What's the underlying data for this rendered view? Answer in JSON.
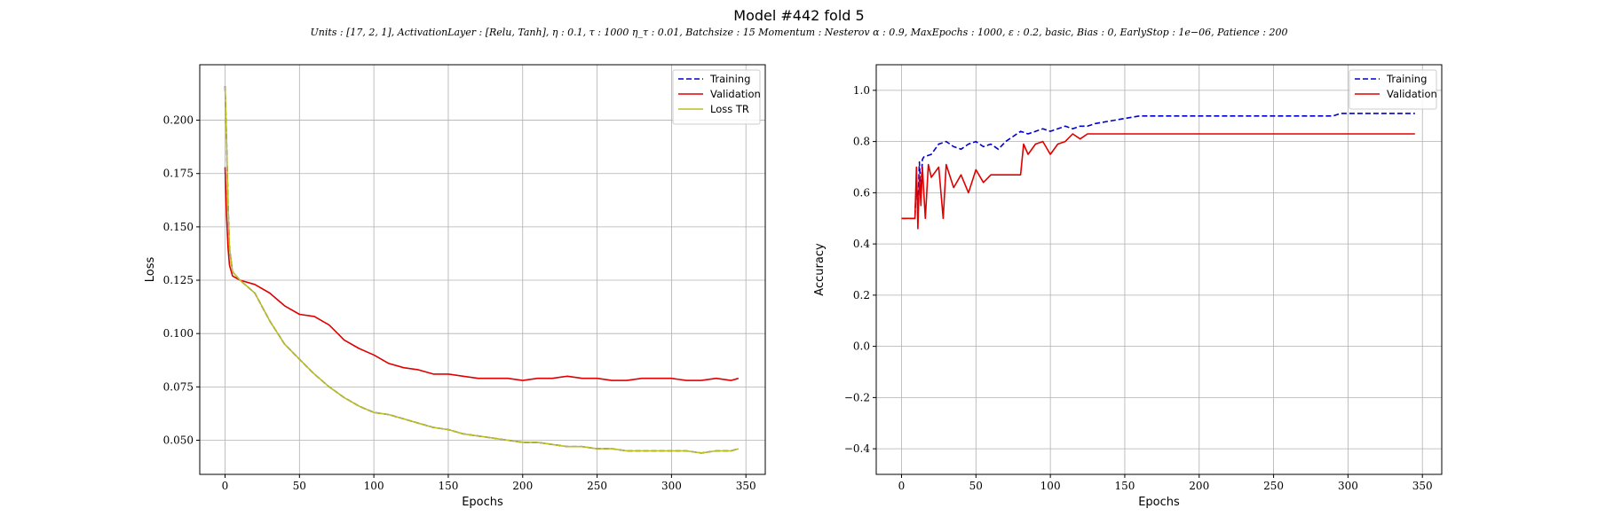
{
  "figure": {
    "title": "Model #442 fold 5",
    "subtitle": "Units : [17, 2, 1], ActivationLayer : [Relu, Tanh], η : 0.1, τ : 1000 η_τ : 0.01, Batchsize : 15 Momentum : Nesterov α : 0.9, MaxEpochs : 1000, ε : 0.2, basic, Bias : 0, EarlyStop : 1e−06, Patience : 200"
  },
  "chart_data": [
    {
      "type": "line",
      "xlabel": "Epochs",
      "ylabel": "Loss",
      "xlim": [
        -17,
        363
      ],
      "ylim": [
        0.034,
        0.226
      ],
      "xticks": [
        0,
        50,
        100,
        150,
        200,
        250,
        300,
        350
      ],
      "yticks": [
        0.05,
        0.075,
        0.1,
        0.125,
        0.15,
        0.175,
        0.2
      ],
      "ytick_labels": [
        "0.050",
        "0.075",
        "0.100",
        "0.125",
        "0.150",
        "0.175",
        "0.200"
      ],
      "grid": true,
      "legend_position": "top-right",
      "series": [
        {
          "name": "Training",
          "color": "#0000cc",
          "dash": "dashed",
          "x": [
            0,
            1,
            2,
            3,
            5,
            10,
            20,
            30,
            40,
            50,
            60,
            70,
            80,
            90,
            100,
            110,
            120,
            130,
            140,
            150,
            160,
            170,
            180,
            190,
            200,
            210,
            220,
            230,
            240,
            250,
            260,
            270,
            280,
            290,
            300,
            310,
            320,
            330,
            340,
            345
          ],
          "y": [
            0.216,
            0.19,
            0.16,
            0.14,
            0.129,
            0.125,
            0.119,
            0.106,
            0.095,
            0.088,
            0.081,
            0.075,
            0.07,
            0.066,
            0.063,
            0.062,
            0.06,
            0.058,
            0.056,
            0.055,
            0.053,
            0.052,
            0.051,
            0.05,
            0.049,
            0.049,
            0.048,
            0.047,
            0.047,
            0.046,
            0.046,
            0.045,
            0.045,
            0.045,
            0.045,
            0.045,
            0.044,
            0.045,
            0.045,
            0.046
          ]
        },
        {
          "name": "Validation",
          "color": "#e00000",
          "dash": "solid",
          "x": [
            0,
            1,
            2,
            3,
            5,
            10,
            20,
            30,
            40,
            50,
            60,
            70,
            80,
            90,
            100,
            110,
            120,
            130,
            140,
            150,
            160,
            170,
            180,
            190,
            200,
            210,
            220,
            230,
            240,
            250,
            260,
            270,
            280,
            290,
            300,
            310,
            320,
            330,
            340,
            345
          ],
          "y": [
            0.178,
            0.155,
            0.14,
            0.132,
            0.127,
            0.125,
            0.123,
            0.119,
            0.113,
            0.109,
            0.108,
            0.104,
            0.097,
            0.093,
            0.09,
            0.086,
            0.084,
            0.083,
            0.081,
            0.081,
            0.08,
            0.079,
            0.079,
            0.079,
            0.078,
            0.079,
            0.079,
            0.08,
            0.079,
            0.079,
            0.078,
            0.078,
            0.079,
            0.079,
            0.079,
            0.078,
            0.078,
            0.079,
            0.078,
            0.079
          ]
        },
        {
          "name": "Loss TR",
          "color": "#bcbd22",
          "dash": "solid",
          "x": [
            0,
            1,
            2,
            3,
            5,
            10,
            20,
            30,
            40,
            50,
            60,
            70,
            80,
            90,
            100,
            110,
            120,
            130,
            140,
            150,
            160,
            170,
            180,
            190,
            200,
            210,
            220,
            230,
            240,
            250,
            260,
            270,
            280,
            290,
            300,
            310,
            320,
            330,
            340,
            345
          ],
          "y": [
            0.216,
            0.19,
            0.16,
            0.14,
            0.129,
            0.125,
            0.119,
            0.106,
            0.095,
            0.088,
            0.081,
            0.075,
            0.07,
            0.066,
            0.063,
            0.062,
            0.06,
            0.058,
            0.056,
            0.055,
            0.053,
            0.052,
            0.051,
            0.05,
            0.049,
            0.049,
            0.048,
            0.047,
            0.047,
            0.046,
            0.046,
            0.045,
            0.045,
            0.045,
            0.045,
            0.045,
            0.044,
            0.045,
            0.045,
            0.046
          ]
        }
      ]
    },
    {
      "type": "line",
      "xlabel": "Epochs",
      "ylabel": "Accuracy",
      "xlim": [
        -17,
        363
      ],
      "ylim": [
        -0.5,
        1.1
      ],
      "xticks": [
        0,
        50,
        100,
        150,
        200,
        250,
        300,
        350
      ],
      "yticks": [
        -0.4,
        -0.2,
        0.0,
        0.2,
        0.4,
        0.6,
        0.8,
        1.0
      ],
      "ytick_labels": [
        "−0.4",
        "−0.2",
        "0.0",
        "0.2",
        "0.4",
        "0.6",
        "0.8",
        "1.0"
      ],
      "grid": true,
      "legend_position": "top-right",
      "series": [
        {
          "name": "Training",
          "color": "#0000cc",
          "dash": "dashed",
          "x": [
            0,
            5,
            9,
            10,
            11,
            12,
            13,
            14,
            15,
            20,
            25,
            30,
            35,
            40,
            45,
            50,
            55,
            60,
            65,
            70,
            75,
            80,
            85,
            90,
            95,
            100,
            105,
            110,
            115,
            120,
            125,
            130,
            140,
            150,
            160,
            170,
            180,
            190,
            200,
            220,
            240,
            260,
            280,
            290,
            295,
            300,
            320,
            345
          ],
          "y": [
            0.5,
            0.5,
            0.5,
            0.65,
            0.55,
            0.72,
            0.6,
            0.73,
            0.74,
            0.75,
            0.79,
            0.8,
            0.78,
            0.77,
            0.79,
            0.8,
            0.78,
            0.79,
            0.77,
            0.8,
            0.82,
            0.84,
            0.83,
            0.84,
            0.85,
            0.84,
            0.85,
            0.86,
            0.85,
            0.86,
            0.86,
            0.87,
            0.88,
            0.89,
            0.9,
            0.9,
            0.9,
            0.9,
            0.9,
            0.9,
            0.9,
            0.9,
            0.9,
            0.9,
            0.91,
            0.91,
            0.91,
            0.91
          ]
        },
        {
          "name": "Validation",
          "color": "#e00000",
          "dash": "solid",
          "x": [
            0,
            5,
            9,
            10,
            11,
            12,
            13,
            14,
            15,
            16,
            18,
            20,
            25,
            28,
            30,
            35,
            40,
            45,
            50,
            55,
            60,
            65,
            70,
            75,
            80,
            82,
            85,
            90,
            95,
            100,
            105,
            110,
            115,
            120,
            125,
            126,
            130,
            150,
            200,
            250,
            300,
            345
          ],
          "y": [
            0.5,
            0.5,
            0.5,
            0.7,
            0.46,
            0.67,
            0.55,
            0.7,
            0.6,
            0.5,
            0.71,
            0.66,
            0.7,
            0.5,
            0.71,
            0.62,
            0.67,
            0.6,
            0.69,
            0.64,
            0.67,
            0.67,
            0.67,
            0.67,
            0.67,
            0.79,
            0.75,
            0.79,
            0.8,
            0.75,
            0.79,
            0.8,
            0.83,
            0.81,
            0.83,
            0.83,
            0.83,
            0.83,
            0.83,
            0.83,
            0.83,
            0.83
          ]
        }
      ]
    }
  ]
}
